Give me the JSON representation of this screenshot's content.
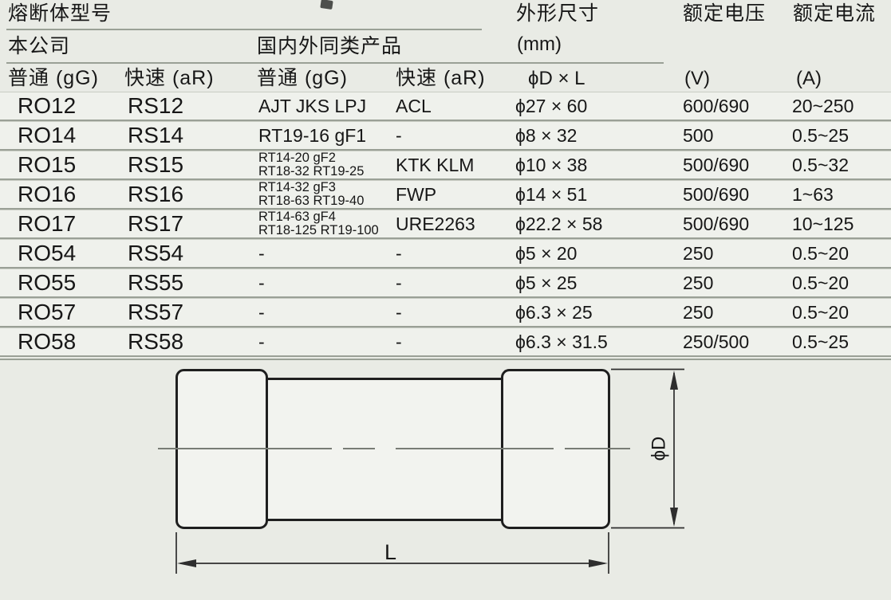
{
  "table": {
    "header": {
      "fuse_model": "熔断体型号",
      "our_company": "本公司",
      "similar_products": "国内外同类产品",
      "dimensions": "外形尺寸",
      "dimensions_unit": "(mm)",
      "rated_voltage": "额定电压",
      "rated_current": "额定电流",
      "col_gg_company": "普通 (gG)",
      "col_ar_company": "快速 (aR)",
      "col_gg_similar": "普通 (gG)",
      "col_ar_similar": "快速 (aR)",
      "col_dim": "ϕD × L",
      "col_voltage_unit": "(V)",
      "col_current_unit": "(A)"
    },
    "rows": [
      {
        "gg": "RO12",
        "ar": "RS12",
        "similar_gg": [
          "AJT JKS LPJ"
        ],
        "similar_ar": "ACL",
        "size": "ϕ27 × 60",
        "voltage": "600/690",
        "current": "20~250"
      },
      {
        "gg": "RO14",
        "ar": "RS14",
        "similar_gg": [
          "RT19-16 gF1"
        ],
        "similar_ar": "-",
        "size": "ϕ8 × 32",
        "voltage": "500",
        "current": "0.5~25"
      },
      {
        "gg": "RO15",
        "ar": "RS15",
        "similar_gg": [
          "RT14-20 gF2",
          "RT18-32 RT19-25"
        ],
        "similar_ar": "KTK KLM",
        "size": "ϕ10 × 38",
        "voltage": "500/690",
        "current": "0.5~32"
      },
      {
        "gg": "RO16",
        "ar": "RS16",
        "similar_gg": [
          "RT14-32 gF3",
          "RT18-63 RT19-40"
        ],
        "similar_ar": "FWP",
        "size": "ϕ14 × 51",
        "voltage": "500/690",
        "current": "1~63"
      },
      {
        "gg": "RO17",
        "ar": "RS17",
        "similar_gg": [
          "RT14-63 gF4",
          "RT18-125 RT19-100"
        ],
        "similar_ar": "URE2263",
        "size": "ϕ22.2 × 58",
        "voltage": "500/690",
        "current": "10~125"
      },
      {
        "gg": "RO54",
        "ar": "RS54",
        "similar_gg": [
          "-"
        ],
        "similar_ar": "-",
        "size": "ϕ5 × 20",
        "voltage": "250",
        "current": "0.5~20"
      },
      {
        "gg": "RO55",
        "ar": "RS55",
        "similar_gg": [
          "-"
        ],
        "similar_ar": "-",
        "size": "ϕ5 × 25",
        "voltage": "250",
        "current": "0.5~20"
      },
      {
        "gg": "RO57",
        "ar": "RS57",
        "similar_gg": [
          "-"
        ],
        "similar_ar": "-",
        "size": "ϕ6.3 × 25",
        "voltage": "250",
        "current": "0.5~20"
      },
      {
        "gg": "RO58",
        "ar": "RS58",
        "similar_gg": [
          "-"
        ],
        "similar_ar": "-",
        "size": "ϕ6.3 × 31.5",
        "voltage": "250/500",
        "current": "0.5~25"
      }
    ]
  },
  "diagram": {
    "length_label": "L",
    "diameter_label": "ϕD"
  },
  "colors": {
    "page_bg": "#e9ebe5",
    "row_bg": "#eff1ec",
    "rule": "#9aa096",
    "ink": "#171717",
    "draw": "#1f1f1f",
    "centerline": "#787c75",
    "cap_fill": "#f2f3ef"
  }
}
